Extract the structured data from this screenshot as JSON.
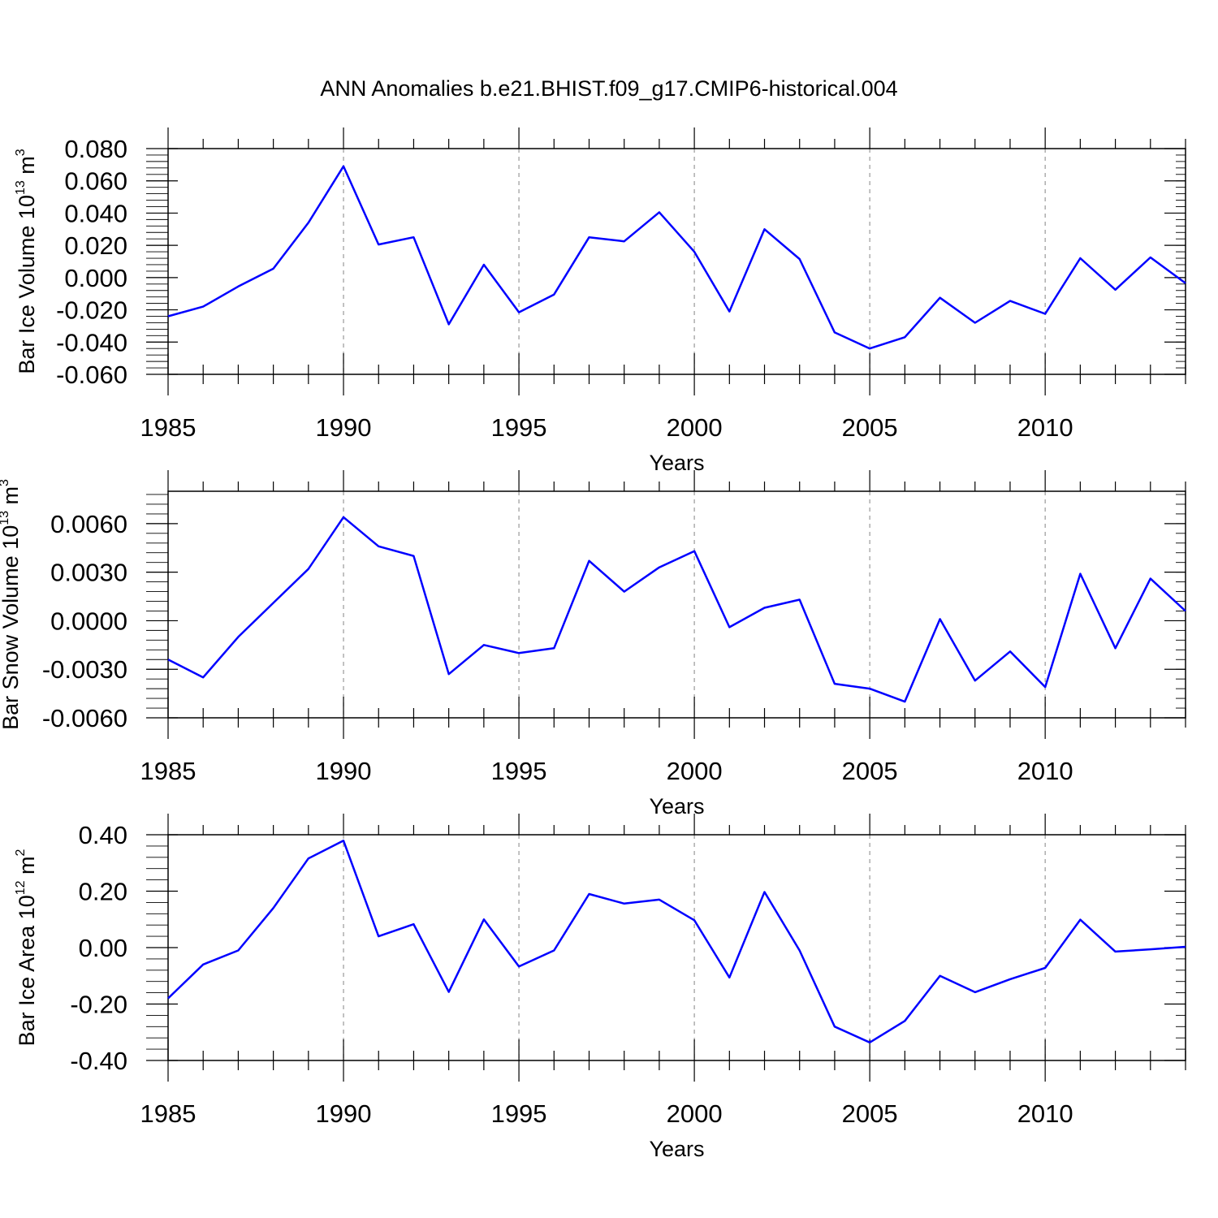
{
  "title": "ANN Anomalies b.e21.BHIST.f09_g17.CMIP6-historical.004",
  "colors": {
    "line": "#0000ff",
    "grid": "#999999",
    "axis": "#000000"
  },
  "chart_data": [
    {
      "type": "line",
      "xlabel": "Years",
      "ylabel": {
        "text": "Bar Ice Volume 10",
        "exp": "13",
        "unit": " m",
        "unit_exp": "3"
      },
      "xlim": [
        1985,
        2014
      ],
      "ylim": [
        -0.06,
        0.08
      ],
      "xticks": [
        "1985",
        "1990",
        "1995",
        "2000",
        "2005",
        "2010"
      ],
      "yticks": [
        "0.080",
        "0.060",
        "0.040",
        "0.020",
        "0.000",
        "-0.020",
        "-0.040",
        "-0.060"
      ],
      "grid": "vertical dashed at labeled years",
      "x": [
        1985,
        1986,
        1987,
        1988,
        1989,
        1990,
        1991,
        1992,
        1993,
        1994,
        1995,
        1996,
        1997,
        1998,
        1999,
        2000,
        2001,
        2002,
        2003,
        2004,
        2005,
        2006,
        2007,
        2008,
        2009,
        2010,
        2011,
        2012,
        2013,
        2014
      ],
      "values": [
        -0.024,
        -0.018,
        -0.0055,
        0.0055,
        0.034,
        0.069,
        0.0205,
        0.025,
        -0.029,
        0.008,
        -0.0215,
        -0.0105,
        0.025,
        0.0225,
        0.0405,
        0.016,
        -0.021,
        0.03,
        0.0115,
        -0.034,
        -0.044,
        -0.037,
        -0.0125,
        -0.028,
        -0.0145,
        -0.0225,
        0.012,
        -0.0075,
        0.0125,
        -0.0035
      ]
    },
    {
      "type": "line",
      "xlabel": "Years",
      "ylabel": {
        "text": "Bar Snow Volume 10",
        "exp": "13",
        "unit": " m",
        "unit_exp": "3"
      },
      "xlim": [
        1985,
        2014
      ],
      "ylim": [
        -0.006,
        0.008
      ],
      "xticks": [
        "1985",
        "1990",
        "1995",
        "2000",
        "2005",
        "2010"
      ],
      "yticks": [
        "0.0060",
        "0.0030",
        "0.0000",
        "-0.0030",
        "-0.0060"
      ],
      "grid": "vertical dashed at labeled years",
      "x": [
        1985,
        1986,
        1987,
        1988,
        1989,
        1990,
        1991,
        1992,
        1993,
        1994,
        1995,
        1996,
        1997,
        1998,
        1999,
        2000,
        2001,
        2002,
        2003,
        2004,
        2005,
        2006,
        2007,
        2008,
        2009,
        2010,
        2011,
        2012,
        2013,
        2014
      ],
      "values": [
        -0.0024,
        -0.0035,
        -0.001,
        0.0011,
        0.0032,
        0.0064,
        0.0046,
        0.004,
        -0.0033,
        -0.0015,
        -0.002,
        -0.0017,
        0.0037,
        0.0018,
        0.0033,
        0.0043,
        -0.0004,
        0.0008,
        0.0013,
        -0.0039,
        -0.0042,
        -0.005,
        0.0001,
        -0.0037,
        -0.0019,
        -0.0041,
        0.0029,
        -0.0017,
        0.0026,
        0.0006
      ]
    },
    {
      "type": "line",
      "xlabel": "Years",
      "ylabel": {
        "text": "Bar Ice Area 10",
        "exp": "12",
        "unit": " m",
        "unit_exp": "2"
      },
      "xlim": [
        1985,
        2014
      ],
      "ylim": [
        -0.4,
        0.4
      ],
      "xticks": [
        "1985",
        "1990",
        "1995",
        "2000",
        "2005",
        "2010"
      ],
      "yticks": [
        "0.40",
        "0.20",
        "0.00",
        "-0.20",
        "-0.40"
      ],
      "grid": "vertical dashed at labeled years",
      "x": [
        1985,
        1986,
        1987,
        1988,
        1989,
        1990,
        1991,
        1992,
        1993,
        1994,
        1995,
        1996,
        1997,
        1998,
        1999,
        2000,
        2001,
        2002,
        2003,
        2004,
        2005,
        2006,
        2007,
        2008,
        2009,
        2010,
        2011,
        2012,
        2013,
        2014
      ],
      "values": [
        -0.18,
        -0.06,
        -0.01,
        0.14,
        0.316,
        0.379,
        0.04,
        0.083,
        -0.157,
        0.1,
        -0.067,
        -0.01,
        0.19,
        0.156,
        0.17,
        0.097,
        -0.106,
        0.197,
        -0.01,
        -0.28,
        -0.336,
        -0.26,
        -0.1,
        -0.158,
        -0.112,
        -0.072,
        0.099,
        -0.014,
        -0.006,
        0.003
      ]
    }
  ]
}
